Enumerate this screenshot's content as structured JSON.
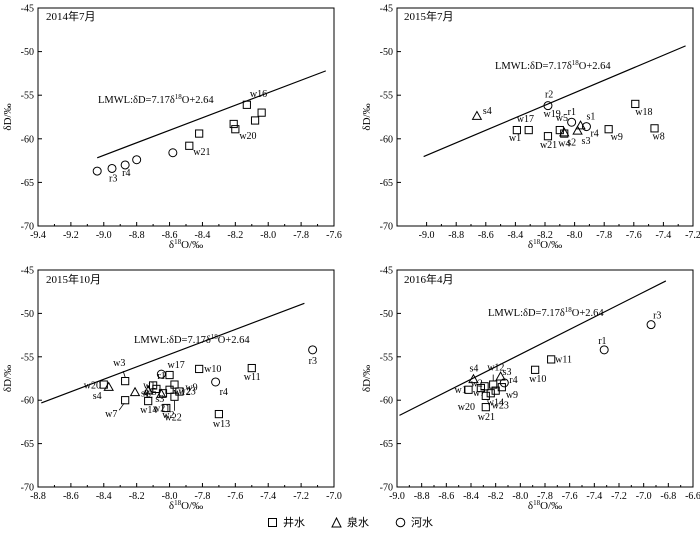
{
  "legend": {
    "well_symbol": "square",
    "well_label": "井水",
    "spring_symbol": "triangle",
    "spring_label": "泉水",
    "river_symbol": "circle",
    "river_label": "河水"
  },
  "chart_data": [
    {
      "type": "scatter",
      "title": "2014年7月",
      "xlabel": "δ18O/‰",
      "ylabel": "δD/‰",
      "xlim": [
        -9.4,
        -7.6
      ],
      "ylim": [
        -70,
        -45
      ],
      "xticks": [
        -9.4,
        -9.2,
        -9.0,
        -8.8,
        -8.6,
        -8.4,
        -8.2,
        -8.0,
        -7.8,
        -7.6
      ],
      "xtick_labels": [
        "-9.4",
        "-9.2",
        "-9.0",
        "-8.8",
        "-8.6",
        "-8.4",
        "-8.2",
        "-8.0",
        "-7.8",
        "-7.6"
      ],
      "yticks": [
        -70,
        -65,
        -60,
        -55,
        -50,
        -45
      ],
      "ytick_labels": [
        "-70",
        "-65",
        "-60",
        "-55",
        "-50",
        "-45"
      ],
      "line": {
        "label": "LMWL:δD=7.17δ18O+2.64",
        "slope": 7.17,
        "intercept": 2.64,
        "x_range": [
          -9.04,
          -7.65
        ]
      },
      "series": [
        {
          "name": "井水",
          "marker": "square",
          "points": [
            {
              "x": -8.42,
              "y": -59.4,
              "label": ""
            },
            {
              "x": -8.48,
              "y": -60.8,
              "label": "w21"
            },
            {
              "x": -8.21,
              "y": -58.3,
              "label": ""
            },
            {
              "x": -8.2,
              "y": -58.9,
              "label": "w20"
            },
            {
              "x": -8.13,
              "y": -56.1,
              "label": "w16"
            },
            {
              "x": -8.08,
              "y": -57.9,
              "label": ""
            },
            {
              "x": -8.04,
              "y": -57.0,
              "label": ""
            }
          ]
        },
        {
          "name": "河水",
          "marker": "circle",
          "points": [
            {
              "x": -9.04,
              "y": -63.7,
              "label": ""
            },
            {
              "x": -8.95,
              "y": -63.4,
              "label": "r3"
            },
            {
              "x": -8.87,
              "y": -63.0,
              "label": "r4"
            },
            {
              "x": -8.8,
              "y": -62.4,
              "label": ""
            },
            {
              "x": -8.58,
              "y": -61.6,
              "label": ""
            }
          ]
        }
      ]
    },
    {
      "type": "scatter",
      "title": "2015年7月",
      "xlabel": "δ18O/‰",
      "ylabel": "δD/‰",
      "xlim": [
        -9.2,
        -7.2
      ],
      "ylim": [
        -70,
        -45
      ],
      "xticks": [
        -9.0,
        -8.8,
        -8.6,
        -8.4,
        -8.2,
        -8.0,
        -7.8,
        -7.6,
        -7.4,
        -7.2
      ],
      "xtick_labels": [
        "-9.0",
        "-8.8",
        "-8.6",
        "-8.4",
        "-8.2",
        "-8.0",
        "-7.8",
        "-7.6",
        "-7.4",
        "-7.2"
      ],
      "yticks": [
        -70,
        -65,
        -60,
        -55,
        -50,
        -45
      ],
      "ytick_labels": [
        "-70",
        "-65",
        "-60",
        "-55",
        "-50",
        "-45"
      ],
      "line": {
        "label": "LMWL:δD=7.17δ18O+2.64",
        "slope": 7.17,
        "intercept": 2.64,
        "x_range": [
          -9.02,
          -7.25
        ]
      },
      "series": [
        {
          "name": "井水",
          "marker": "square",
          "points": [
            {
              "x": -8.39,
              "y": -59.0,
              "label": "w1"
            },
            {
              "x": -8.31,
              "y": -59.0,
              "label": "w17"
            },
            {
              "x": -8.18,
              "y": -59.7,
              "label": "w21"
            },
            {
              "x": -8.07,
              "y": -59.4,
              "label": "w4"
            },
            {
              "x": -7.77,
              "y": -58.9,
              "label": "w9"
            },
            {
              "x": -7.59,
              "y": -56.0,
              "label": "w18"
            },
            {
              "x": -7.46,
              "y": -58.8,
              "label": "w8"
            },
            {
              "x": -8.1,
              "y": -59.0,
              "label": "w5"
            }
          ]
        },
        {
          "name": "泉水",
          "marker": "triangle",
          "points": [
            {
              "x": -8.66,
              "y": -57.4,
              "label": "s4"
            },
            {
              "x": -8.07,
              "y": -59.3,
              "label": "s2"
            },
            {
              "x": -7.98,
              "y": -59.1,
              "label": "s3"
            },
            {
              "x": -7.96,
              "y": -58.5,
              "label": "s1"
            }
          ]
        },
        {
          "name": "河水",
          "marker": "circle",
          "points": [
            {
              "x": -8.18,
              "y": -56.2,
              "label": "r2"
            },
            {
              "x": -8.02,
              "y": -58.1,
              "label": "r1"
            },
            {
              "x": -7.92,
              "y": -58.6,
              "label": "r4"
            }
          ]
        }
      ],
      "extra_labels": [
        "w19"
      ]
    },
    {
      "type": "scatter",
      "title": "2015年10月",
      "xlabel": "δ18O/‰",
      "ylabel": "δD/‰",
      "xlim": [
        -8.8,
        -7.0
      ],
      "ylim": [
        -70,
        -45
      ],
      "xticks": [
        -8.8,
        -8.6,
        -8.4,
        -8.2,
        -8.0,
        -7.8,
        -7.6,
        -7.4,
        -7.2,
        -7.0
      ],
      "xtick_labels": [
        "-8.8",
        "-8.6",
        "-8.4",
        "-8.2",
        "-8.0",
        "-7.8",
        "-7.6",
        "-7.4",
        "-7.2",
        "-7.0"
      ],
      "yticks": [
        -70,
        -65,
        -60,
        -55,
        -50,
        -45
      ],
      "ytick_labels": [
        "-70",
        "-65",
        "-60",
        "-55",
        "-50",
        "-45"
      ],
      "line": {
        "label": "LMWL:δD=7.17δ18O+2.64",
        "slope": 7.17,
        "intercept": 2.64,
        "x_range": [
          -8.78,
          -7.18
        ]
      },
      "series": [
        {
          "name": "井水",
          "marker": "square",
          "points": [
            {
              "x": -8.27,
              "y": -57.8,
              "label": "w3"
            },
            {
              "x": -8.27,
              "y": -60.0,
              "label": "w7"
            },
            {
              "x": -8.4,
              "y": -58.2,
              "label": "w20"
            },
            {
              "x": -8.13,
              "y": -60.1,
              "label": "w14"
            },
            {
              "x": -8.1,
              "y": -58.3,
              "label": "w1"
            },
            {
              "x": -8.08,
              "y": -58.7,
              "label": "w5"
            },
            {
              "x": -8.04,
              "y": -59.2,
              "label": "w21"
            },
            {
              "x": -8.0,
              "y": -57.1,
              "label": "w17"
            },
            {
              "x": -8.0,
              "y": -58.8,
              "label": "w12"
            },
            {
              "x": -8.02,
              "y": -60.9,
              "label": "w2"
            },
            {
              "x": -7.97,
              "y": -59.6,
              "label": "w22"
            },
            {
              "x": -7.94,
              "y": -59.0,
              "label": "w9"
            },
            {
              "x": -7.82,
              "y": -56.4,
              "label": "w10"
            },
            {
              "x": -7.5,
              "y": -56.3,
              "label": "w11"
            },
            {
              "x": -7.7,
              "y": -61.6,
              "label": "w13"
            },
            {
              "x": -7.97,
              "y": -58.2,
              "label": "w23"
            }
          ]
        },
        {
          "name": "泉水",
          "marker": "triangle",
          "points": [
            {
              "x": -8.37,
              "y": -58.5,
              "label": "s4"
            },
            {
              "x": -8.21,
              "y": -59.1,
              "label": "s1"
            },
            {
              "x": -8.13,
              "y": -58.9,
              "label": "s2"
            },
            {
              "x": -8.05,
              "y": -59.3,
              "label": "s3"
            }
          ]
        },
        {
          "name": "河水",
          "marker": "circle",
          "points": [
            {
              "x": -8.05,
              "y": -57.0,
              "label": "r1"
            },
            {
              "x": -7.72,
              "y": -57.9,
              "label": "r4"
            },
            {
              "x": -7.13,
              "y": -54.2,
              "label": "r3"
            }
          ]
        }
      ]
    },
    {
      "type": "scatter",
      "title": "2016年4月",
      "xlabel": "δ18O/‰",
      "ylabel": "δD/‰",
      "xlim": [
        -9.0,
        -6.6
      ],
      "ylim": [
        -70,
        -45
      ],
      "xticks": [
        -9.0,
        -8.8,
        -8.6,
        -8.4,
        -8.2,
        -8.0,
        -7.8,
        -7.6,
        -7.4,
        -7.2,
        -7.0,
        -6.8,
        -6.6
      ],
      "xtick_labels": [
        "-9.0",
        "-8.8",
        "-8.6",
        "-8.4",
        "-8.2",
        "-8.0",
        "-7.8",
        "-7.6",
        "-7.4",
        "-7.2",
        "-7.0",
        "-6.8",
        "-6.6"
      ],
      "yticks": [
        -70,
        -65,
        -60,
        -55,
        -50,
        -45
      ],
      "ytick_labels": [
        "-70",
        "-65",
        "-60",
        "-55",
        "-50",
        "-45"
      ],
      "line": {
        "label": "LMWL:δD=7.17δ18O+2.64",
        "slope": 7.17,
        "intercept": 2.64,
        "x_range": [
          -8.98,
          -6.82
        ]
      },
      "series": [
        {
          "name": "井水",
          "marker": "square",
          "points": [
            {
              "x": -8.22,
              "y": -58.2,
              "label": "w12"
            },
            {
              "x": -8.29,
              "y": -58.4,
              "label": "w2"
            },
            {
              "x": -8.42,
              "y": -58.8,
              "label": "w1"
            },
            {
              "x": -8.24,
              "y": -59.2,
              "label": "w14"
            },
            {
              "x": -8.28,
              "y": -59.5,
              "label": "w20"
            },
            {
              "x": -8.28,
              "y": -60.8,
              "label": "w21"
            },
            {
              "x": -8.2,
              "y": -58.9,
              "label": "w23"
            },
            {
              "x": -8.15,
              "y": -58.5,
              "label": "w9"
            },
            {
              "x": -7.88,
              "y": -56.5,
              "label": "w10"
            },
            {
              "x": -7.75,
              "y": -55.3,
              "label": "w11"
            },
            {
              "x": -8.32,
              "y": -58.6,
              "label": "w7"
            }
          ]
        },
        {
          "name": "泉水",
          "marker": "triangle",
          "points": [
            {
              "x": -8.38,
              "y": -57.6,
              "label": "s4"
            },
            {
              "x": -8.16,
              "y": -57.3,
              "label": "s3"
            }
          ]
        },
        {
          "name": "河水",
          "marker": "circle",
          "points": [
            {
              "x": -8.13,
              "y": -58.0,
              "label": "r4"
            },
            {
              "x": -7.32,
              "y": -54.2,
              "label": "r1"
            },
            {
              "x": -6.94,
              "y": -51.3,
              "label": "r3"
            }
          ]
        }
      ]
    }
  ]
}
